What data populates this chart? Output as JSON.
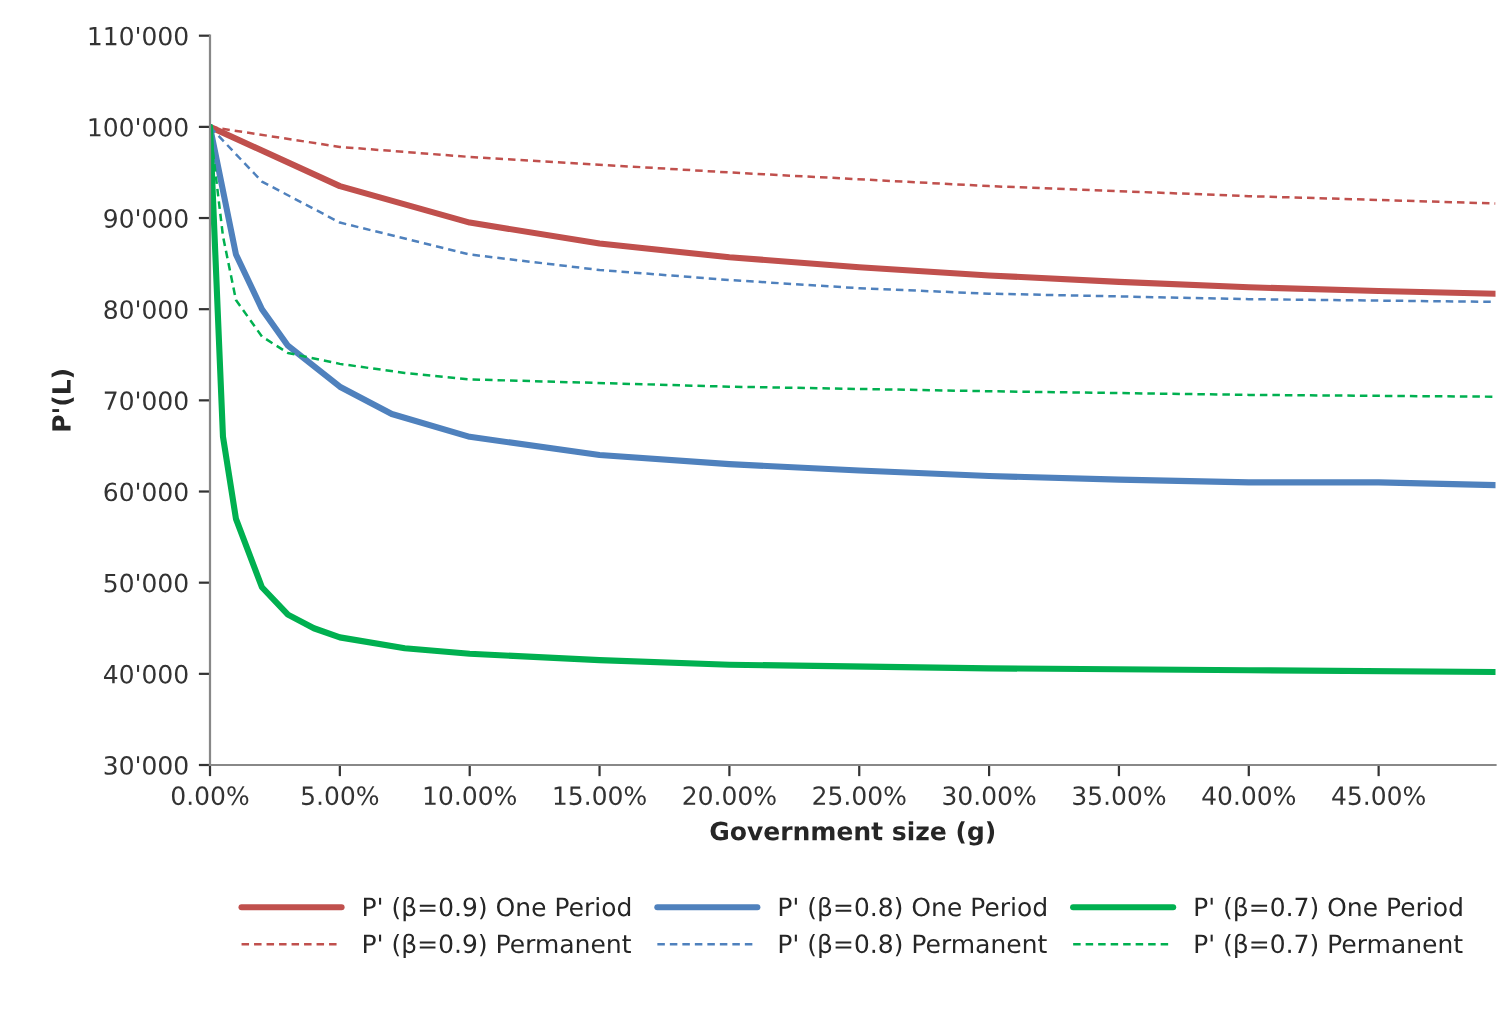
{
  "chart_data": {
    "type": "line",
    "xlabel": "Government size (g)",
    "ylabel": "P'(L)",
    "xlim": [
      0,
      49.5
    ],
    "ylim": [
      30000,
      110000
    ],
    "xticks": [
      {
        "value": 0,
        "label": "0.00%"
      },
      {
        "value": 5,
        "label": "5.00%"
      },
      {
        "value": 10,
        "label": "10.00%"
      },
      {
        "value": 15,
        "label": "15.00%"
      },
      {
        "value": 20,
        "label": "20.00%"
      },
      {
        "value": 25,
        "label": "25.00%"
      },
      {
        "value": 30,
        "label": "30.00%"
      },
      {
        "value": 35,
        "label": "35.00%"
      },
      {
        "value": 40,
        "label": "40.00%"
      },
      {
        "value": 45,
        "label": "45.00%"
      }
    ],
    "yticks": [
      {
        "value": 30000,
        "label": "30'000"
      },
      {
        "value": 40000,
        "label": "40'000"
      },
      {
        "value": 50000,
        "label": "50'000"
      },
      {
        "value": 60000,
        "label": "60'000"
      },
      {
        "value": 70000,
        "label": "70'000"
      },
      {
        "value": 80000,
        "label": "80'000"
      },
      {
        "value": 90000,
        "label": "90'000"
      },
      {
        "value": 100000,
        "label": "100'000"
      },
      {
        "value": 110000,
        "label": "110'000"
      }
    ],
    "grid": false,
    "legend": "bottom",
    "marker": "none",
    "series": [
      {
        "name": "P' (β=0.9) One Period",
        "color": "#c0504d",
        "line_style": "solid",
        "x": [
          0,
          5,
          10,
          15,
          20,
          25,
          30,
          35,
          40,
          45,
          49.5
        ],
        "values": [
          100000,
          93500,
          89500,
          87200,
          85700,
          84600,
          83700,
          83000,
          82400,
          82000,
          81700
        ]
      },
      {
        "name": "P' (β=0.9) Permanent",
        "color": "#c0504d",
        "line_style": "dashed",
        "x": [
          0,
          5,
          10,
          20,
          30,
          40,
          49.5
        ],
        "values": [
          100000,
          97800,
          96700,
          95000,
          93500,
          92400,
          91600
        ]
      },
      {
        "name": "P' (β=0.8) One Period",
        "color": "#4f81bd",
        "line_style": "solid",
        "x": [
          0,
          1,
          2,
          3,
          5,
          7,
          10,
          15,
          20,
          25,
          30,
          35,
          40,
          45,
          49.5
        ],
        "values": [
          100000,
          86000,
          80000,
          76000,
          71500,
          68500,
          66000,
          64000,
          63000,
          62300,
          61700,
          61300,
          61000,
          61000,
          60700
        ]
      },
      {
        "name": "P' (β=0.8) Permanent",
        "color": "#4f81bd",
        "line_style": "dashed",
        "x": [
          0,
          2,
          5,
          10,
          15,
          20,
          25,
          30,
          35,
          40,
          49.5
        ],
        "values": [
          100000,
          94000,
          89500,
          86000,
          84300,
          83200,
          82300,
          81700,
          81400,
          81100,
          80800
        ]
      },
      {
        "name": "P' (β=0.7) One Period",
        "color": "#00b050",
        "line_style": "solid",
        "x": [
          0,
          0.5,
          1,
          2,
          3,
          4,
          5,
          7.5,
          10,
          15,
          20,
          30,
          40,
          49.5
        ],
        "values": [
          100000,
          66000,
          57000,
          49500,
          46500,
          45000,
          44000,
          42800,
          42200,
          41500,
          41000,
          40600,
          40400,
          40200
        ]
      },
      {
        "name": "P' (β=0.7) Permanent",
        "color": "#00b050",
        "line_style": "dashed",
        "x": [
          0,
          0.5,
          1,
          2,
          3,
          5,
          7.5,
          10,
          20,
          30,
          40,
          49.5
        ],
        "values": [
          100000,
          88000,
          81000,
          77000,
          75200,
          74000,
          73000,
          72300,
          71500,
          71000,
          70600,
          70400
        ]
      }
    ]
  }
}
